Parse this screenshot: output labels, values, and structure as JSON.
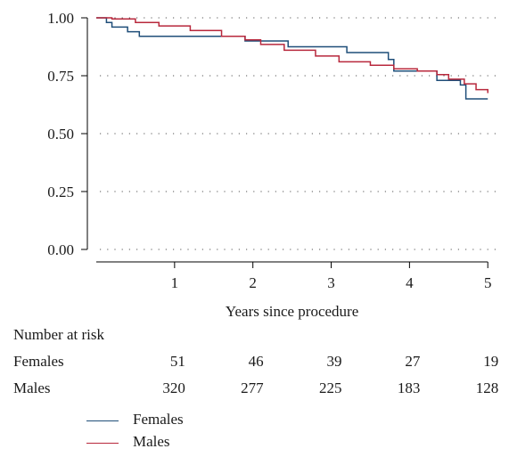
{
  "chart_data": {
    "type": "line",
    "step": true,
    "xlabel": "Years since procedure",
    "ylabel": "",
    "xlim": [
      0,
      5.1
    ],
    "ylim": [
      0,
      1
    ],
    "x_ticks": [
      1,
      2,
      3,
      4,
      5
    ],
    "y_ticks": [
      0.0,
      0.25,
      0.5,
      0.75,
      1.0
    ],
    "y_tick_labels": [
      "0.00",
      "0.25",
      "0.50",
      "0.75",
      "1.00"
    ],
    "grid": "horizontal dotted",
    "legend_position": "bottom",
    "series": [
      {
        "name": "Females",
        "color": "#1f4e79",
        "points": [
          [
            0,
            1.0
          ],
          [
            0.13,
            0.98
          ],
          [
            0.2,
            0.96
          ],
          [
            0.4,
            0.94
          ],
          [
            0.55,
            0.92
          ],
          [
            1.9,
            0.9
          ],
          [
            2.45,
            0.875
          ],
          [
            3.2,
            0.85
          ],
          [
            3.73,
            0.82
          ],
          [
            3.8,
            0.77
          ],
          [
            4.35,
            0.73
          ],
          [
            4.65,
            0.71
          ],
          [
            4.72,
            0.65
          ],
          [
            5.0,
            0.65
          ]
        ]
      },
      {
        "name": "Males",
        "color": "#b8283c",
        "points": [
          [
            0,
            1.0
          ],
          [
            0.2,
            0.995
          ],
          [
            0.5,
            0.98
          ],
          [
            0.8,
            0.965
          ],
          [
            1.2,
            0.945
          ],
          [
            1.6,
            0.92
          ],
          [
            1.9,
            0.905
          ],
          [
            2.1,
            0.885
          ],
          [
            2.4,
            0.86
          ],
          [
            2.8,
            0.835
          ],
          [
            3.1,
            0.81
          ],
          [
            3.5,
            0.795
          ],
          [
            3.8,
            0.78
          ],
          [
            4.1,
            0.77
          ],
          [
            4.35,
            0.755
          ],
          [
            4.5,
            0.735
          ],
          [
            4.7,
            0.715
          ],
          [
            4.85,
            0.69
          ],
          [
            5.0,
            0.675
          ]
        ]
      }
    ],
    "risk_table": {
      "title": "Number at risk",
      "rows": [
        {
          "label": "Females",
          "values": [
            "51",
            "46",
            "39",
            "27",
            "19"
          ]
        },
        {
          "label": "Males",
          "values": [
            "320",
            "277",
            "225",
            "183",
            "128"
          ]
        }
      ]
    }
  }
}
